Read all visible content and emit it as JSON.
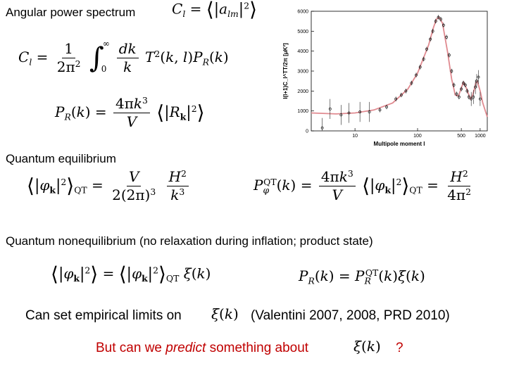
{
  "headings": {
    "angular": "Angular power spectrum",
    "quantum_eq": "Quantum equilibrium",
    "quantum_noneq": "Quantum nonequilibrium (no relaxation during inflation; product state)"
  },
  "bottom": {
    "limits_prefix": "Can set empirical limits on",
    "limits_ref": "(Valentini 2007, 2008, PRD 2010)",
    "predict_prefix": "But can we",
    "predict_emph": "predict",
    "predict_suffix": "something about",
    "question_mark": "?"
  },
  "colors": {
    "red_text": "#c00000",
    "fit_curve": "#e08a90"
  },
  "chart_data": {
    "type": "line",
    "title": "",
    "xlabel": "Multipole moment  l",
    "ylabel": "l(l+1)C_l^TT/2π [μK²]",
    "x_scale": "log",
    "x_ticks": [
      "10",
      "100",
      "500",
      "1000"
    ],
    "y_ticks": [
      "0",
      "1000",
      "2000",
      "3000",
      "4000",
      "5000",
      "6000"
    ],
    "ylim": [
      0,
      6000
    ],
    "xlim": [
      2,
      1300
    ],
    "series": [
      {
        "kind": "model",
        "x": [
          2,
          5,
          10,
          20,
          40,
          70,
          100,
          150,
          180,
          200,
          220,
          250,
          300,
          350,
          400,
          450,
          500,
          540,
          600,
          700,
          750,
          800,
          850,
          900,
          1000,
          1100,
          1300
        ],
        "values": [
          900,
          850,
          900,
          1050,
          1400,
          2100,
          2900,
          4300,
          5200,
          5600,
          5700,
          5400,
          4000,
          2600,
          1800,
          1750,
          2150,
          2450,
          2150,
          1600,
          1750,
          2050,
          2400,
          2500,
          2000,
          1400,
          700
        ]
      },
      {
        "kind": "data",
        "x": [
          3,
          4,
          6,
          8,
          12,
          17,
          25,
          32,
          45,
          55,
          65,
          80,
          95,
          110,
          125,
          140,
          160,
          175,
          195,
          215,
          235,
          260,
          290,
          320,
          350,
          380,
          420,
          460,
          500,
          540,
          580,
          620,
          660,
          720,
          780,
          840,
          880,
          940,
          1000
        ],
        "values": [
          150,
          1100,
          800,
          900,
          950,
          950,
          1050,
          1200,
          1600,
          1800,
          2000,
          2400,
          2800,
          3200,
          3600,
          4100,
          4600,
          5000,
          5500,
          5700,
          5600,
          5300,
          4700,
          3800,
          3000,
          2300,
          1850,
          1700,
          2100,
          2400,
          2300,
          2000,
          1700,
          1600,
          1700,
          2200,
          2500,
          2700,
          1600
        ]
      }
    ]
  }
}
